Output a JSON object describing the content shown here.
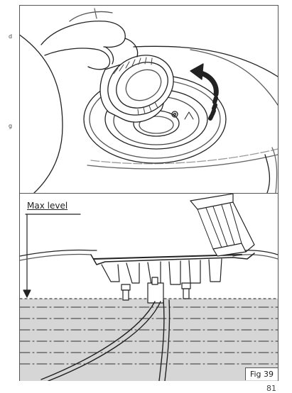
{
  "side_text": {
    "fragment_1": "d",
    "fragment_2": "g"
  },
  "figure": {
    "max_level_label": "Max level",
    "figure_label": "Fig 39"
  },
  "page": {
    "number": "81"
  }
}
